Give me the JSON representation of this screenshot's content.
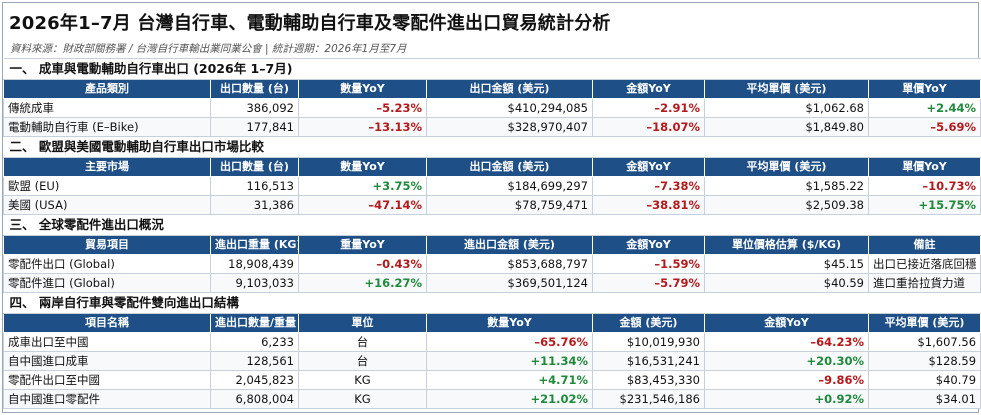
{
  "title": "2026年1–7月 台灣自行車、電動輔助自行車及零配件進出口貿易統計分析",
  "subtitle": "資料來源：財政部關務署 / 台灣自行車輸出業同業公會 | 統計週期：2026年1月至7月",
  "colors": {
    "header_bg": "#1e4f86",
    "negative": "#b5191c",
    "positive": "#1f8a3a"
  },
  "sections": [
    {
      "title": "一、 成車與電動輔助自行車出口 (2026年 1–7月)",
      "headers": [
        "產品類別",
        "出口數量 (台)",
        "數量YoY",
        "出口金額 (美元)",
        "金額YoY",
        "平均單價 (美元)",
        "單價YoY"
      ],
      "rows": [
        [
          "傳統成車",
          "386,092",
          "–5.23%",
          "$410,294,085",
          "–2.91%",
          "$1,062.68",
          "+2.44%"
        ],
        [
          "電動輔助自行車 (E–Bike)",
          "177,841",
          "–13.13%",
          "$328,970,407",
          "–18.07%",
          "$1,849.80",
          "–5.69%"
        ]
      ]
    },
    {
      "title": "二、 歐盟與美國電動輔助自行車出口市場比較",
      "headers": [
        "主要市場",
        "出口數量 (台)",
        "數量YoY",
        "出口金額 (美元)",
        "金額YoY",
        "平均單價 (美元)",
        "單價YoY"
      ],
      "rows": [
        [
          "歐盟 (EU)",
          "116,513",
          "+3.75%",
          "$184,699,297",
          "–7.38%",
          "$1,585.22",
          "–10.73%"
        ],
        [
          "美國 (USA)",
          "31,386",
          "–47.14%",
          "$78,759,471",
          "–38.81%",
          "$2,509.38",
          "+15.75%"
        ]
      ]
    },
    {
      "title": "三、 全球零配件進出口概況",
      "headers": [
        "貿易項目",
        "進出口重量 (KG)",
        "重量YoY",
        "進出口金額 (美元)",
        "金額YoY",
        "單位價格估算 ($/KG)",
        "備註"
      ],
      "rows": [
        [
          "零配件出口 (Global)",
          "18,908,439",
          "–0.43%",
          "$853,688,797",
          "–1.59%",
          "$45.15",
          "出口已接近落底回穩"
        ],
        [
          "零配件進口 (Global)",
          "9,103,033",
          "+16.27%",
          "$369,501,124",
          "–5.79%",
          "$40.59",
          "進口重拾拉貨力道"
        ]
      ]
    },
    {
      "title": "四、 兩岸自行車與零配件雙向進出口結構",
      "headers": [
        "項目名稱",
        "進出口數量/重量",
        "單位",
        "數量YoY",
        "金額 (美元)",
        "金額YoY",
        "平均單價 (美元)"
      ],
      "rows": [
        [
          "成車出口至中國",
          "6,233",
          "台",
          "–65.76%",
          "$10,019,930",
          "–64.23%",
          "$1,607.56"
        ],
        [
          "自中國進口成車",
          "128,561",
          "台",
          "+11.34%",
          "$16,531,241",
          "+20.30%",
          "$128.59"
        ],
        [
          "零配件出口至中國",
          "2,045,823",
          "KG",
          "+4.71%",
          "$83,453,330",
          "–9.86%",
          "$40.79"
        ],
        [
          "自中國進口零配件",
          "6,808,004",
          "KG",
          "+21.02%",
          "$231,546,186",
          "+0.92%",
          "$34.01"
        ]
      ]
    }
  ]
}
